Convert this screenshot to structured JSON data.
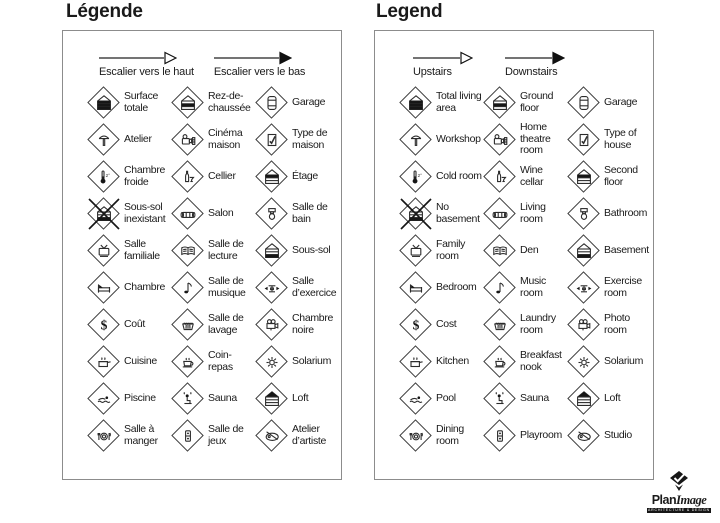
{
  "colors": {
    "text": "#1a1a1a",
    "panel_border": "#8c8c8c",
    "icon_stroke": "#2c2c2c",
    "black": "#161616"
  },
  "panels": [
    {
      "id": "fr",
      "title": "Légende",
      "arrows": [
        {
          "label": "Escalier vers le haut",
          "style": "open"
        },
        {
          "label": "Escalier vers le bas",
          "style": "filled"
        }
      ],
      "items": [
        {
          "label": "Surface totale",
          "icon": "house-total"
        },
        {
          "label": "Rez-de-chaussée",
          "icon": "house-ground"
        },
        {
          "label": "Garage",
          "icon": "garage"
        },
        {
          "label": "Atelier",
          "icon": "workshop"
        },
        {
          "label": "Cinéma maison",
          "icon": "home-theatre"
        },
        {
          "label": "Type de maison",
          "icon": "house-type"
        },
        {
          "label": "Chambre froide",
          "icon": "cold-room"
        },
        {
          "label": "Cellier",
          "icon": "wine-cellar"
        },
        {
          "label": "Étage",
          "icon": "house-second"
        },
        {
          "label": "Sous-sol inexistant",
          "icon": "no-basement"
        },
        {
          "label": "Salon",
          "icon": "sofa"
        },
        {
          "label": "Salle de bain",
          "icon": "bathroom"
        },
        {
          "label": "Salle familiale",
          "icon": "tv"
        },
        {
          "label": "Salle de lecture",
          "icon": "book"
        },
        {
          "label": "Sous-sol",
          "icon": "house-basement"
        },
        {
          "label": "Chambre",
          "icon": "bed"
        },
        {
          "label": "Salle de musique",
          "icon": "music"
        },
        {
          "label": "Salle d’exercice",
          "icon": "exercise"
        },
        {
          "label": "Coût",
          "icon": "cost"
        },
        {
          "label": "Salle de lavage",
          "icon": "laundry"
        },
        {
          "label": "Chambre noire",
          "icon": "photo"
        },
        {
          "label": "Cuisine",
          "icon": "kitchen"
        },
        {
          "label": "Coin-repas",
          "icon": "cup"
        },
        {
          "label": "Solarium",
          "icon": "sun"
        },
        {
          "label": "Piscine",
          "icon": "pool"
        },
        {
          "label": "Sauna",
          "icon": "sauna"
        },
        {
          "label": "Loft",
          "icon": "house-loft"
        },
        {
          "label": "Salle à manger",
          "icon": "dining"
        },
        {
          "label": "Salle de jeux",
          "icon": "play"
        },
        {
          "label": "Atelier d’artiste",
          "icon": "palette"
        }
      ]
    },
    {
      "id": "en",
      "title": "Legend",
      "arrows": [
        {
          "label": "Upstairs",
          "style": "open"
        },
        {
          "label": "Downstairs",
          "style": "filled"
        }
      ],
      "items": [
        {
          "label": "Total living area",
          "icon": "house-total"
        },
        {
          "label": "Ground floor",
          "icon": "house-ground"
        },
        {
          "label": "Garage",
          "icon": "garage"
        },
        {
          "label": "Workshop",
          "icon": "workshop"
        },
        {
          "label": "Home theatre room",
          "icon": "home-theatre"
        },
        {
          "label": "Type of house",
          "icon": "house-type"
        },
        {
          "label": "Cold room",
          "icon": "cold-room"
        },
        {
          "label": "Wine cellar",
          "icon": "wine-cellar"
        },
        {
          "label": "Second floor",
          "icon": "house-second"
        },
        {
          "label": "No basement",
          "icon": "no-basement"
        },
        {
          "label": "Living room",
          "icon": "sofa"
        },
        {
          "label": "Bathroom",
          "icon": "bathroom"
        },
        {
          "label": "Family room",
          "icon": "tv"
        },
        {
          "label": "Den",
          "icon": "book"
        },
        {
          "label": "Basement",
          "icon": "house-basement"
        },
        {
          "label": "Bedroom",
          "icon": "bed"
        },
        {
          "label": "Music room",
          "icon": "music"
        },
        {
          "label": "Exercise room",
          "icon": "exercise"
        },
        {
          "label": "Cost",
          "icon": "cost"
        },
        {
          "label": "Laundry room",
          "icon": "laundry"
        },
        {
          "label": "Photo room",
          "icon": "photo"
        },
        {
          "label": "Kitchen",
          "icon": "kitchen"
        },
        {
          "label": "Breakfast nook",
          "icon": "cup"
        },
        {
          "label": "Solarium",
          "icon": "sun"
        },
        {
          "label": "Pool",
          "icon": "pool"
        },
        {
          "label": "Sauna",
          "icon": "sauna"
        },
        {
          "label": "Loft",
          "icon": "house-loft"
        },
        {
          "label": "Dining room",
          "icon": "dining"
        },
        {
          "label": "Playroom",
          "icon": "play"
        },
        {
          "label": "Studio",
          "icon": "palette"
        }
      ]
    }
  ],
  "logo": {
    "brand_bold": "Plan",
    "brand_script": "Image",
    "tagline": "ARCHITECTURE & DESIGN"
  }
}
